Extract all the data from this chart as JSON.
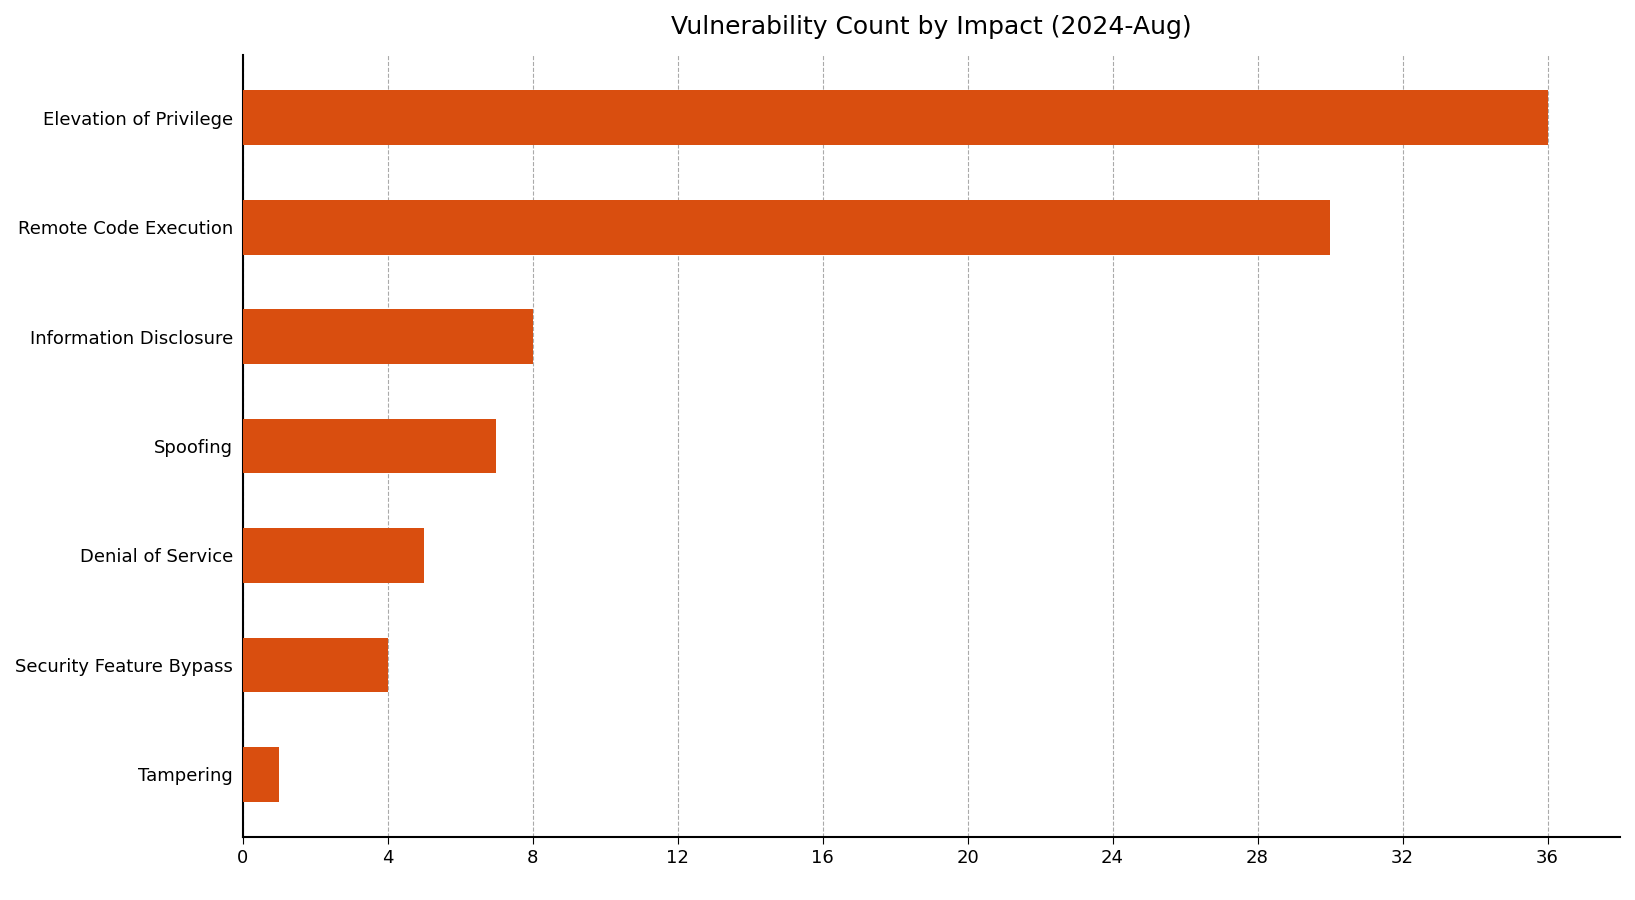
{
  "title": "Vulnerability Count by Impact (2024-Aug)",
  "categories": [
    "Elevation of Privilege",
    "Remote Code Execution",
    "Information Disclosure",
    "Spoofing",
    "Denial of Service",
    "Security Feature Bypass",
    "Tampering"
  ],
  "values": [
    36,
    30,
    8,
    7,
    5,
    4,
    1
  ],
  "bar_color": "#d94e0f",
  "xlim": [
    0,
    38
  ],
  "xticks": [
    0,
    4,
    8,
    12,
    16,
    20,
    24,
    28,
    32,
    36
  ],
  "title_fontsize": 18,
  "tick_fontsize": 13,
  "label_fontsize": 13,
  "background_color": "#ffffff",
  "grid_color": "#aaaaaa",
  "bar_height": 0.5
}
